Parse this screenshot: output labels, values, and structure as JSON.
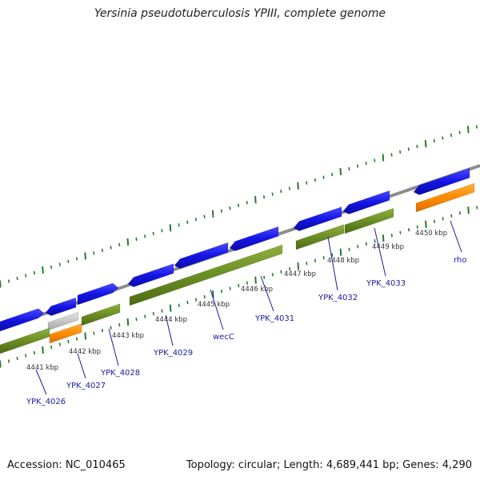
{
  "title": "Yersinia pseudotuberculosis YPIII, complete genome",
  "footer": {
    "accession": "Accession: NC_010465",
    "topology": "Topology: circular; Length: 4,689,441 bp; Genes: 4,290"
  },
  "colors": {
    "cds": "#1515e6",
    "gene": "#6b8e23",
    "rna": "#ff8c00",
    "misc": "#c8c8c8",
    "backbone": "#888888",
    "ticks": "#2a7a2a",
    "gene_label": "#1a1aa0"
  },
  "scale_labels": [
    "4441 kbp",
    "4442 kbp",
    "4443 kbp",
    "4444 kbp",
    "4445 kbp",
    "4446 kbp",
    "4447 kbp",
    "4448 kbp",
    "4449 kbp",
    "4450 kbp"
  ],
  "gene_labels": [
    "YPK_4026",
    "YPK_4027",
    "YPK_4028",
    "YPK_4029",
    "wecC",
    "YPK_4031",
    "YPK_4032",
    "YPK_4033",
    "rho"
  ]
}
